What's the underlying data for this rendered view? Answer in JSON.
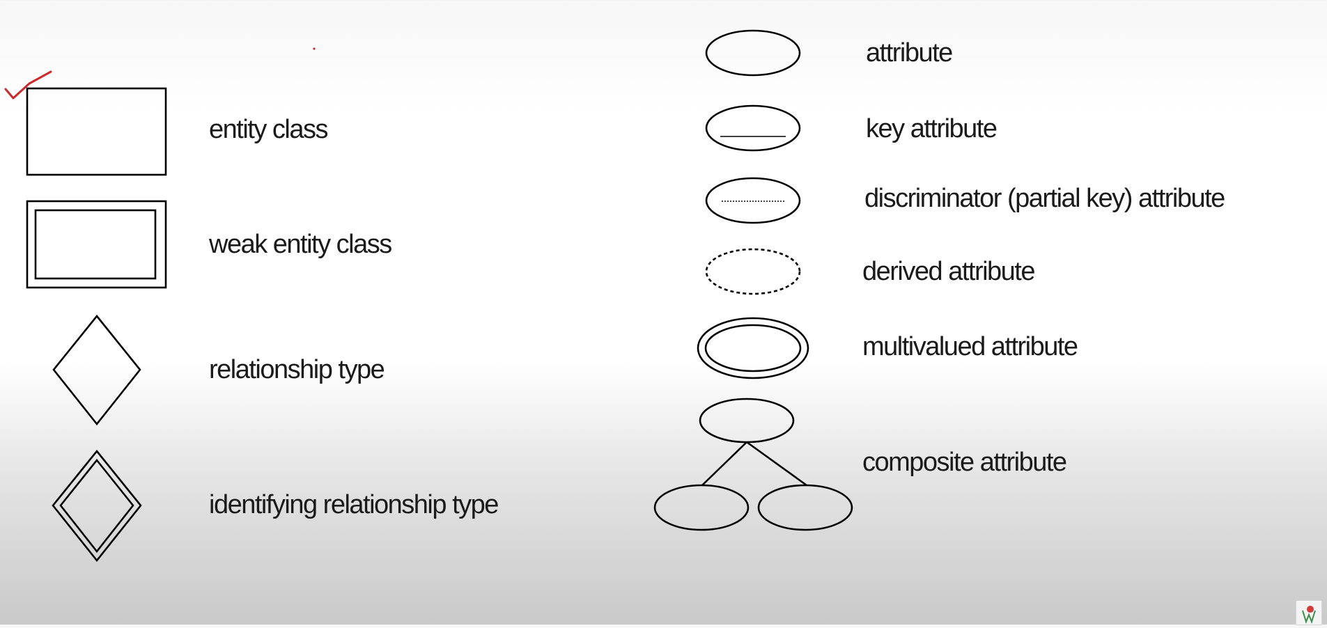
{
  "colors": {
    "ink": "#000000",
    "label": "#1a1a1a",
    "annotation": "#cc2a2a"
  },
  "legend": {
    "left": [
      {
        "symbol": "rectangle-icon",
        "label": "entity class"
      },
      {
        "symbol": "double-rectangle-icon",
        "label": "weak entity class"
      },
      {
        "symbol": "diamond-icon",
        "label": "relationship type"
      },
      {
        "symbol": "double-diamond-icon",
        "label": "identifying relationship type"
      }
    ],
    "right": [
      {
        "symbol": "ellipse-icon",
        "label": "attribute"
      },
      {
        "symbol": "underlined-ellipse-icon",
        "label": "key attribute"
      },
      {
        "symbol": "dotted-underline-ellipse-icon",
        "label": "discriminator (partial key) attribute"
      },
      {
        "symbol": "dashed-ellipse-icon",
        "label": "derived attribute"
      },
      {
        "symbol": "double-ellipse-icon",
        "label": "multivalued attribute"
      },
      {
        "symbol": "ellipse-tree-icon",
        "label": "composite attribute"
      }
    ]
  },
  "annotations": {
    "checkmark": "checkmark-icon"
  },
  "watermark": {
    "icon": "channel-logo-icon"
  }
}
